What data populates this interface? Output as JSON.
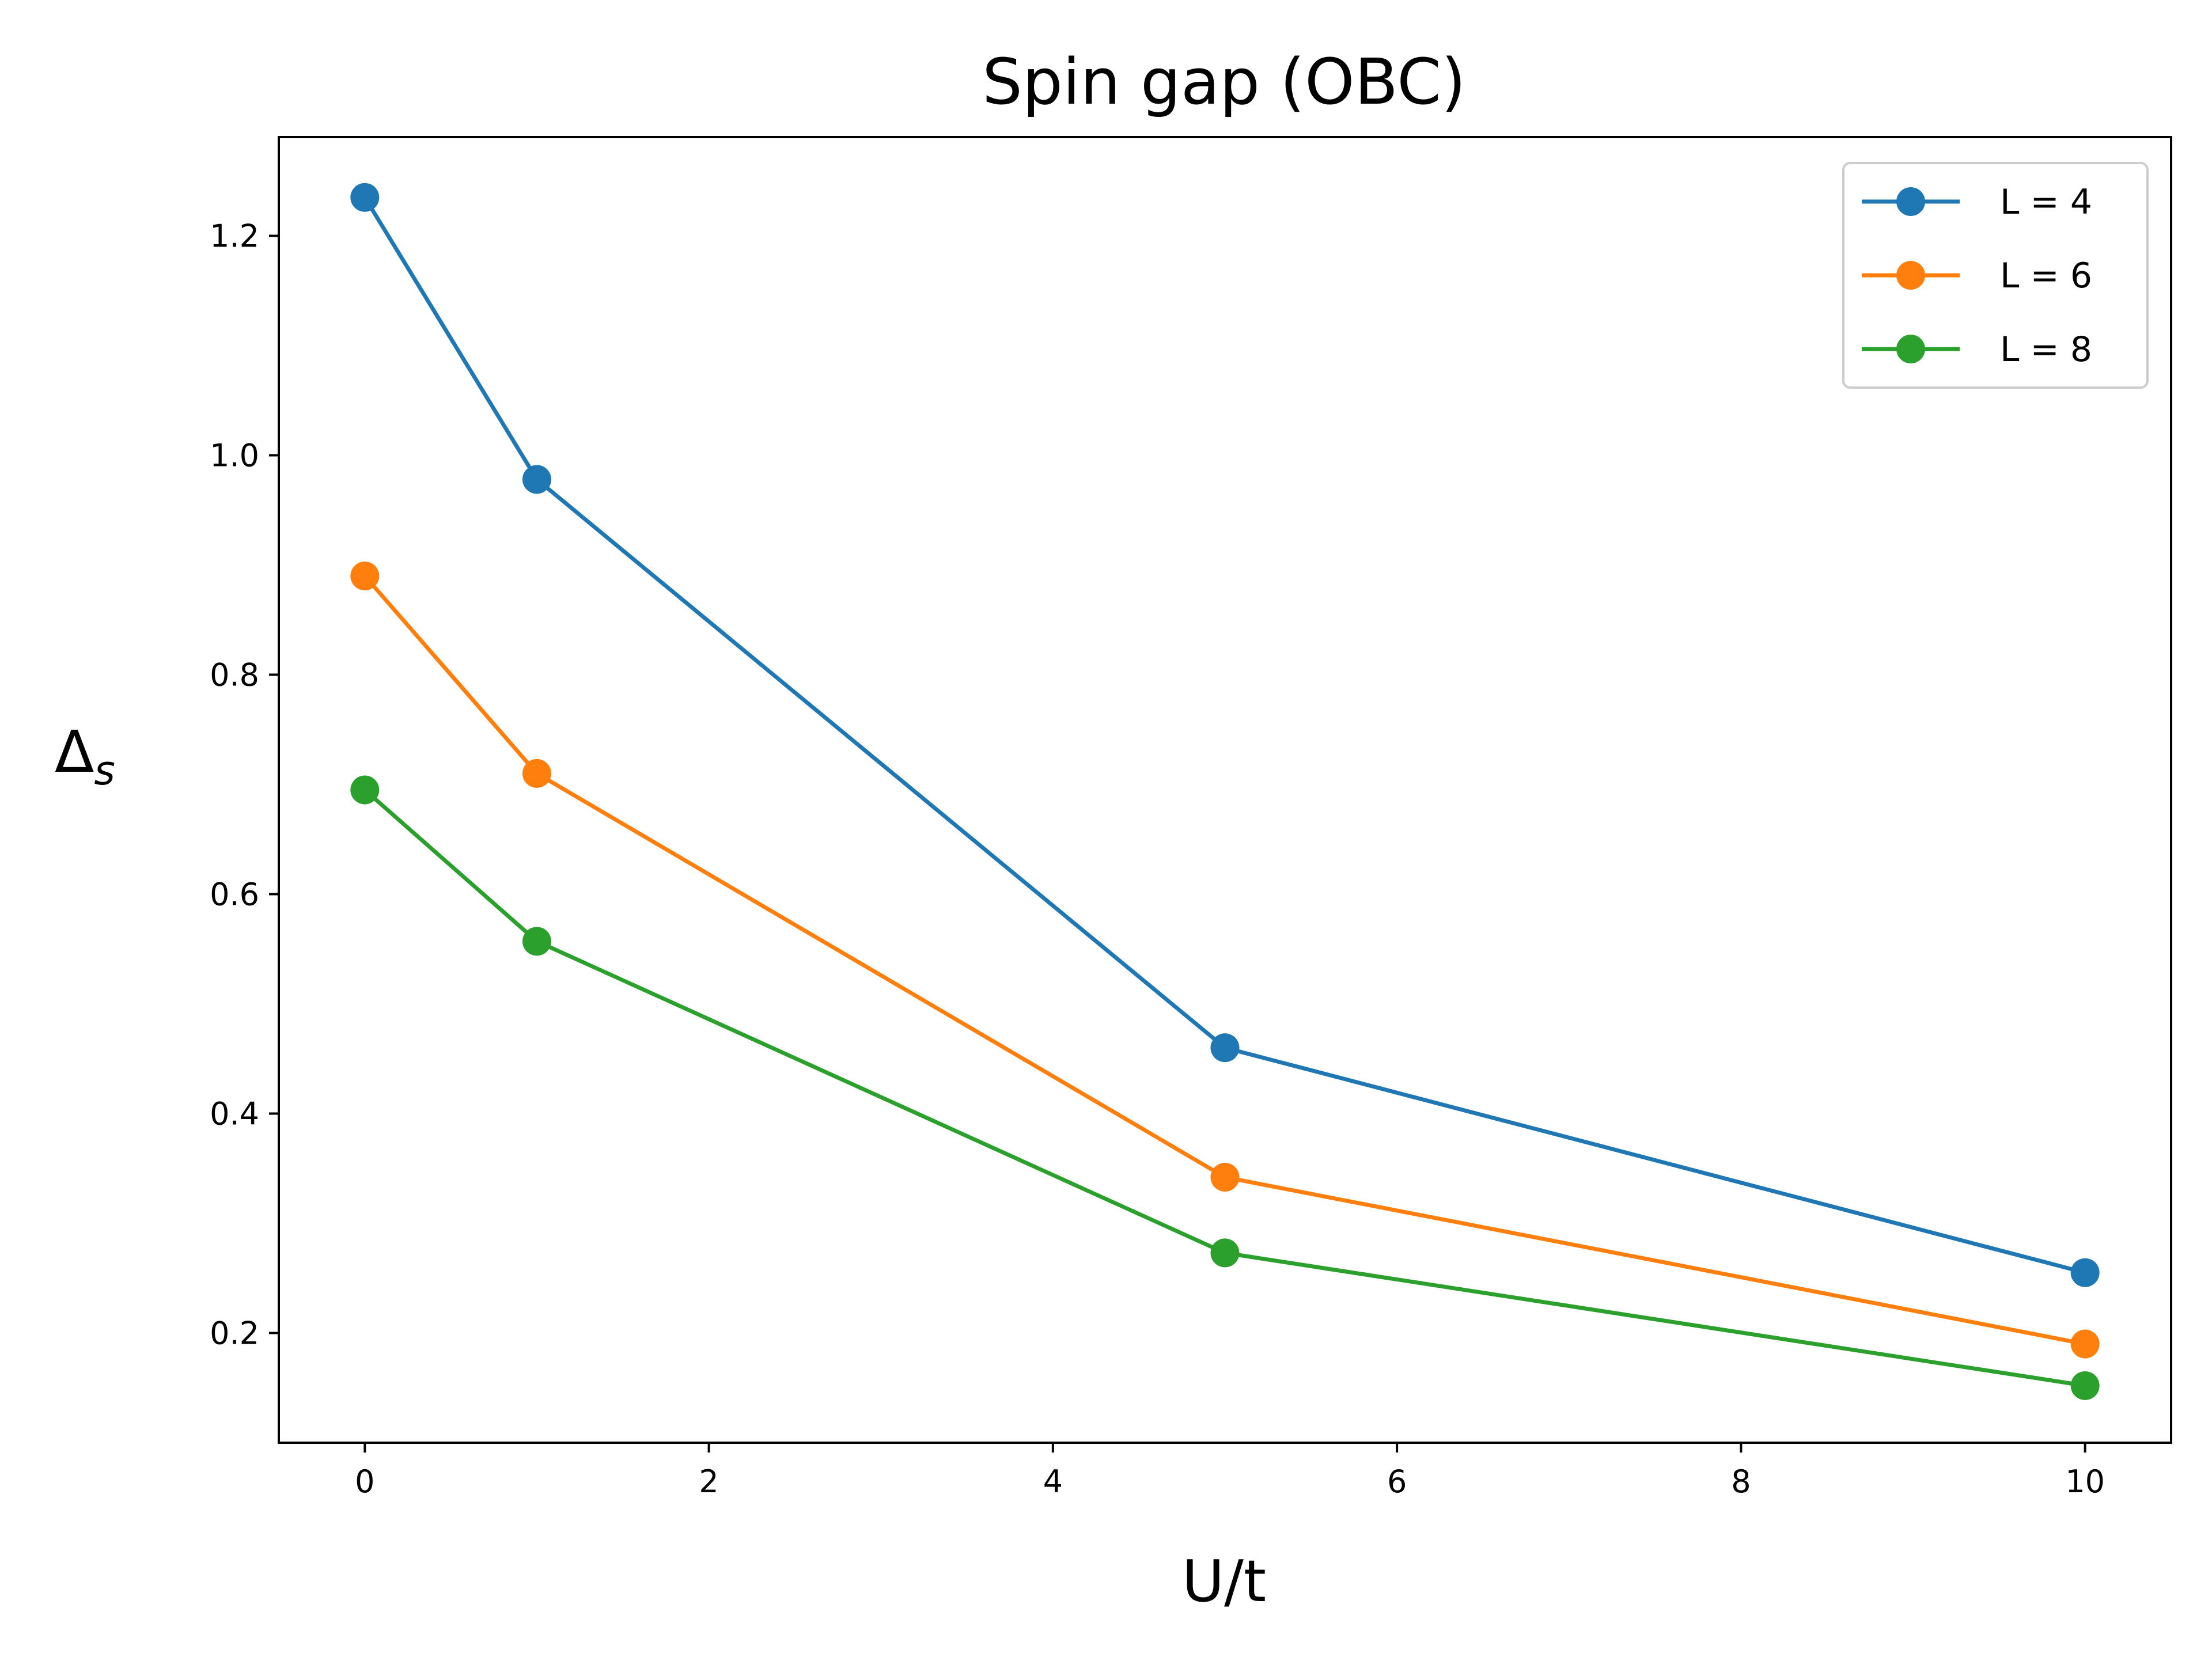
{
  "chart_data": {
    "type": "line",
    "title": "Spin gap (OBC)",
    "xlabel": "U/t",
    "ylabel": {
      "main": "Δ",
      "subscript": "s"
    },
    "x": [
      0,
      1,
      5,
      10
    ],
    "xlim": [
      -0.5,
      10.5
    ],
    "ylim": [
      0.1,
      1.29
    ],
    "xticks": [
      0,
      2,
      4,
      6,
      8,
      10
    ],
    "xtick_labels": [
      "0",
      "2",
      "4",
      "6",
      "8",
      "10"
    ],
    "yticks": [
      0.2,
      0.4,
      0.6,
      0.8,
      1.0,
      1.2
    ],
    "ytick_labels": [
      "0.2",
      "0.4",
      "0.6",
      "0.8",
      "1.0",
      "1.2"
    ],
    "grid": false,
    "legend_position": "top-right",
    "series": [
      {
        "name": "L = 4",
        "color": "#1f77b4",
        "marker": "circle",
        "values": [
          1.235,
          0.978,
          0.46,
          0.255
        ]
      },
      {
        "name": "L = 6",
        "color": "#ff7f0e",
        "marker": "circle",
        "values": [
          0.89,
          0.71,
          0.342,
          0.19
        ]
      },
      {
        "name": "L = 8",
        "color": "#2ca02c",
        "marker": "circle",
        "values": [
          0.695,
          0.557,
          0.273,
          0.152
        ]
      }
    ]
  }
}
